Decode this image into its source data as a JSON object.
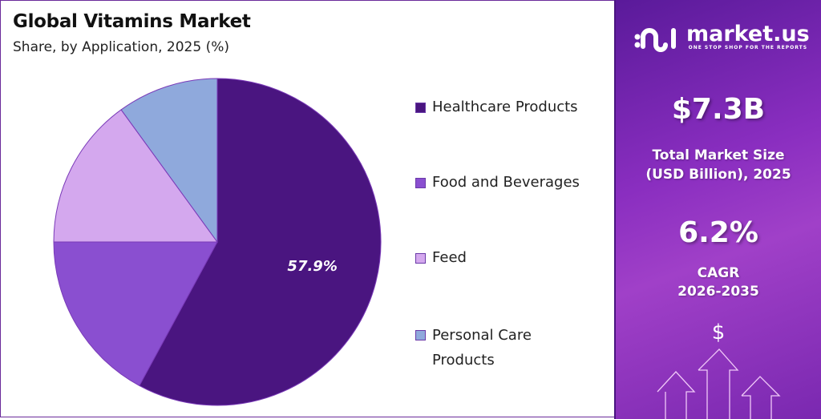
{
  "chart_data": {
    "type": "pie",
    "title": "Global Vitamins Market",
    "subtitle": "Share, by Application, 2025 (%)",
    "categories": [
      "Healthcare Products",
      "Food and Beverages",
      "Feed",
      "Personal Care Products"
    ],
    "values": [
      57.9,
      17.1,
      15.0,
      10.0
    ],
    "data_labels": [
      "57.9%",
      "",
      "",
      ""
    ],
    "colors": [
      "#4a1580",
      "#8a4fd0",
      "#d4a8ee",
      "#8fa9dc"
    ],
    "start_angle": "top, clockwise",
    "legend_placement": "right"
  },
  "legend": {
    "items": [
      {
        "label": "Healthcare Products",
        "color": "#4a1580"
      },
      {
        "label": "Food and Beverages",
        "color": "#8a4fd0"
      },
      {
        "label": "Feed",
        "color": "#d4a8ee"
      },
      {
        "label": "Personal Care Products",
        "line1": "Personal Care",
        "line2": "Products",
        "color": "#8fa9dc"
      }
    ]
  },
  "panel": {
    "brand": "market.us",
    "tagline": "ONE STOP SHOP FOR THE REPORTS",
    "market_size": "$7.3B",
    "market_size_label1": "Total Market Size",
    "market_size_label2": "(USD Billion), 2025",
    "cagr": "6.2%",
    "cagr_label1": "CAGR",
    "cagr_label2": "2026-2035",
    "dollar_symbol": "$",
    "icons": [
      "market-us-logo-icon",
      "dollar-icon",
      "up-arrow-icon"
    ]
  }
}
